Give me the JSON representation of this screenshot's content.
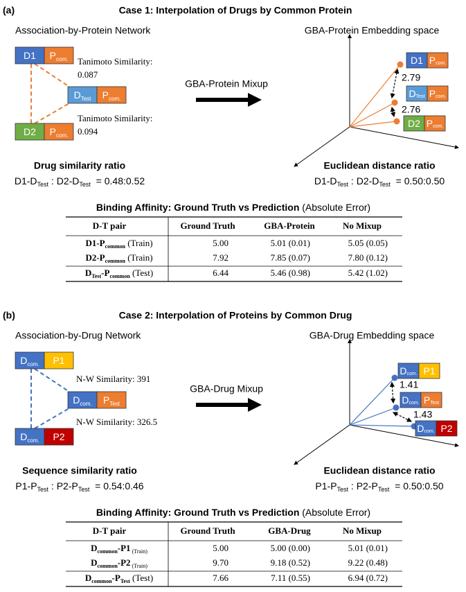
{
  "panels": [
    {
      "tag": "(a)",
      "title": "Case 1: Interpolation of Drugs by Common Protein",
      "left": {
        "heading": "Association-by-Protein Network",
        "boxes": [
          [
            [
              "D1"
            ],
            [
              "P",
              "com."
            ]
          ],
          [
            [
              "D",
              "Test"
            ],
            [
              "P",
              "com."
            ]
          ],
          [
            [
              "D2"
            ],
            [
              "P",
              "com."
            ]
          ]
        ],
        "similarities": [
          [
            "Tanimoto Similarity:",
            "0.087"
          ],
          [
            "Tanimoto Similarity:",
            "0.094"
          ]
        ],
        "ratio_title": "Drug similarity ratio",
        "ratio": [
          "D1-D",
          "Test",
          " : D2-D",
          "Test",
          "  = 0.48:0.52"
        ]
      },
      "mixup": "GBA-Protein Mixup",
      "right": {
        "heading": "GBA-Protein Embedding space",
        "boxes": [
          [
            [
              "D1"
            ],
            [
              "P",
              "com."
            ]
          ],
          [
            [
              "D",
              "Test"
            ],
            [
              "P",
              "com."
            ]
          ],
          [
            [
              "D2"
            ],
            [
              "P",
              "com."
            ]
          ]
        ],
        "distances": [
          "2.79",
          "2.76"
        ],
        "ratio_title": "Euclidean distance ratio",
        "ratio": [
          "D1-D",
          "Test",
          " : D2-D",
          "Test",
          "  = 0.50:0.50"
        ]
      },
      "table": {
        "caption": [
          "Binding Affinity: Ground Truth vs Prediction",
          " (Absolute Error)"
        ],
        "columns": [
          "D-T pair",
          "Ground Truth",
          "GBA-Protein",
          "No Mixup"
        ],
        "rows": [
          [
            [
              "D1-P",
              "common",
              " (Train)"
            ],
            "5.00",
            "5.01 (0.01)",
            "5.05 (0.05)"
          ],
          [
            [
              "D2-P",
              "common",
              " (Train)"
            ],
            "7.92",
            "7.85 (0.07)",
            "7.80 (0.12)"
          ],
          [
            [
              "D",
              "Test",
              "-P",
              "common",
              " (Test)"
            ],
            "6.44",
            "5.46 (0.98)",
            "5.42 (1.02)"
          ]
        ]
      }
    },
    {
      "tag": "(b)",
      "title": "Case 2: Interpolation of Proteins by Common Drug",
      "left": {
        "heading": "Association-by-Drug Network",
        "boxes": [
          [
            [
              "D",
              "com."
            ],
            [
              "P1"
            ]
          ],
          [
            [
              "D",
              "com."
            ],
            [
              "P",
              "Test"
            ]
          ],
          [
            [
              "D",
              "com."
            ],
            [
              "P2"
            ]
          ]
        ],
        "similarities": [
          [
            "N-W Similarity: 391"
          ],
          [
            "N-W Similarity: 326.5"
          ]
        ],
        "ratio_title": "Sequence similarity ratio",
        "ratio": [
          "P1-P",
          "Test",
          " : P2-P",
          "Test",
          "  = 0.54:0.46"
        ]
      },
      "mixup": "GBA-Drug Mixup",
      "right": {
        "heading": "GBA-Drug Embedding space",
        "boxes": [
          [
            [
              "D",
              "com."
            ],
            [
              "P1"
            ]
          ],
          [
            [
              "D",
              "com."
            ],
            [
              "P",
              "Test"
            ]
          ],
          [
            [
              "D",
              "com."
            ],
            [
              "P2"
            ]
          ]
        ],
        "distances": [
          "1.41",
          "1.43"
        ],
        "ratio_title": "Euclidean distance ratio",
        "ratio": [
          "P1-P",
          "Test",
          " : P2-P",
          "Test",
          "  = 0.50:0.50"
        ]
      },
      "table": {
        "caption": [
          "Binding Affinity: Ground Truth vs Prediction",
          " (Absolute Error)"
        ],
        "columns": [
          "D-T pair",
          "Ground Truth",
          "GBA-Drug",
          "No Mixup"
        ],
        "rows": [
          [
            [
              "D",
              "common",
              "-P1",
              " (Train)"
            ],
            "5.00",
            "5.00 (0.00)",
            "5.01 (0.01)"
          ],
          [
            [
              "D",
              "common",
              "-P2",
              " (Train)"
            ],
            "9.70",
            "9.18 (0.52)",
            "9.22 (0.48)"
          ],
          [
            [
              "D",
              "common",
              "-P",
              "Test",
              " (Test)"
            ],
            "7.66",
            "7.11 (0.55)",
            "6.94 (0.72)"
          ]
        ]
      }
    }
  ]
}
